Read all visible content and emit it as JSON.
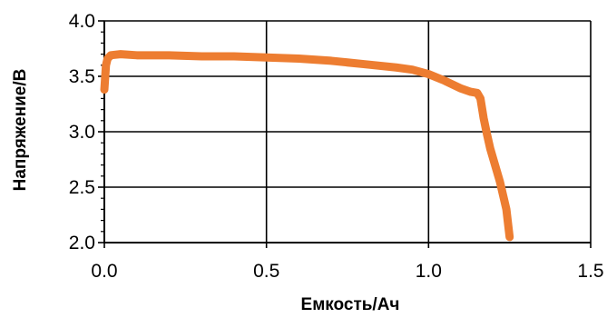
{
  "chart_data": {
    "type": "line",
    "title": "",
    "xlabel": "Емкость/Ач",
    "ylabel": "Напряжение/В",
    "xlim": [
      0.0,
      1.5
    ],
    "ylim": [
      2.0,
      4.0
    ],
    "x_ticks": [
      "0.0",
      "0.5",
      "1.0",
      "1.5"
    ],
    "y_ticks": [
      "2.0",
      "2.5",
      "3.0",
      "3.5",
      "4.0"
    ],
    "grid": true,
    "legend": "none",
    "series": [
      {
        "color": "#ED7D31",
        "x": [
          0.0,
          0.005,
          0.01,
          0.02,
          0.05,
          0.1,
          0.2,
          0.3,
          0.4,
          0.5,
          0.6,
          0.7,
          0.8,
          0.9,
          0.95,
          1.0,
          1.05,
          1.1,
          1.13,
          1.15,
          1.16,
          1.17,
          1.18,
          1.19,
          1.2,
          1.22,
          1.24,
          1.25
        ],
        "y": [
          3.38,
          3.6,
          3.66,
          3.69,
          3.7,
          3.69,
          3.69,
          3.68,
          3.68,
          3.67,
          3.66,
          3.64,
          3.61,
          3.58,
          3.56,
          3.52,
          3.46,
          3.39,
          3.36,
          3.35,
          3.3,
          3.12,
          2.98,
          2.85,
          2.75,
          2.55,
          2.3,
          2.05
        ]
      }
    ]
  }
}
